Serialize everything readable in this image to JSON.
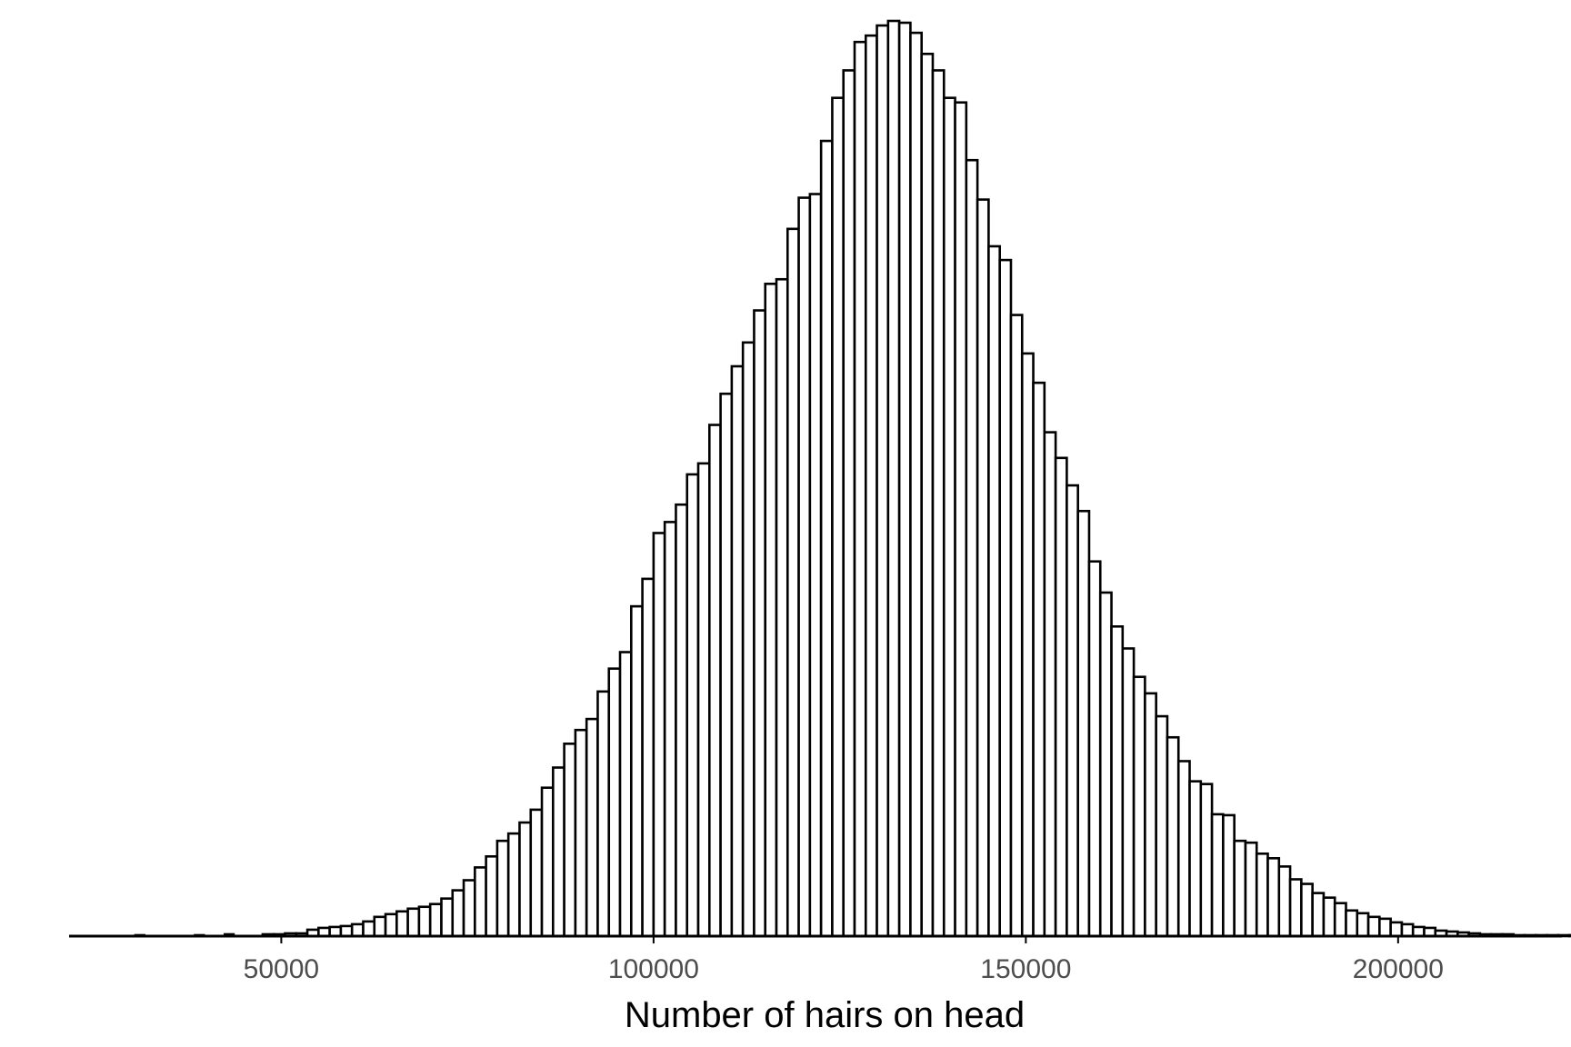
{
  "chart_data": {
    "type": "histogram",
    "title": "",
    "xlabel": "Number of hairs on head",
    "ylabel": "",
    "xlim": [
      21500,
      222000
    ],
    "ylim": [
      0,
      1000
    ],
    "y_axis_shown": false,
    "grid": false,
    "legend": "none",
    "bin_width": 1500,
    "bin_start": 47500,
    "x_ticks": [
      50000,
      100000,
      150000,
      200000
    ],
    "x_tick_labels": [
      "50000",
      "100000",
      "150000",
      "200000"
    ],
    "counts": [
      2,
      2,
      3,
      3,
      7,
      9,
      10,
      11,
      13,
      16,
      21,
      24,
      27,
      30,
      32,
      35,
      41,
      50,
      61,
      75,
      87,
      104,
      112,
      124,
      138,
      162,
      184,
      210,
      225,
      237,
      267,
      292,
      310,
      360,
      390,
      440,
      452,
      471,
      504,
      516,
      558,
      592,
      622,
      648,
      683,
      712,
      717,
      772,
      806,
      810,
      868,
      915,
      945,
      976,
      983,
      994,
      999,
      997,
      986,
      963,
      945,
      915,
      910,
      847,
      804,
      753,
      738,
      678,
      636,
      604,
      550,
      522,
      492,
      464,
      409,
      375,
      338,
      314,
      283,
      265,
      240,
      217,
      191,
      169,
      166,
      133,
      132,
      104,
      102,
      90,
      85,
      76,
      62,
      57,
      47,
      42,
      36,
      28,
      25,
      21,
      19,
      15,
      13,
      10,
      9,
      6,
      5,
      4,
      3,
      2,
      2,
      2,
      1,
      1,
      1,
      1,
      1,
      1,
      1,
      1,
      1,
      1,
      1,
      1,
      1,
      1,
      1,
      1,
      2,
      1,
      1,
      1,
      1,
      1,
      1,
      1,
      1
    ],
    "left_tail_marks": [
      {
        "x": 31000,
        "count": 1
      },
      {
        "x": 39000,
        "count": 1
      },
      {
        "x": 43000,
        "count": 2
      }
    ],
    "colors": {
      "bar_fill": "#ffffff",
      "bar_outline": "#000000",
      "axis_line": "#000000",
      "tick_label": "#4d4d4d",
      "axis_title": "#000000",
      "background": "#ffffff"
    }
  }
}
